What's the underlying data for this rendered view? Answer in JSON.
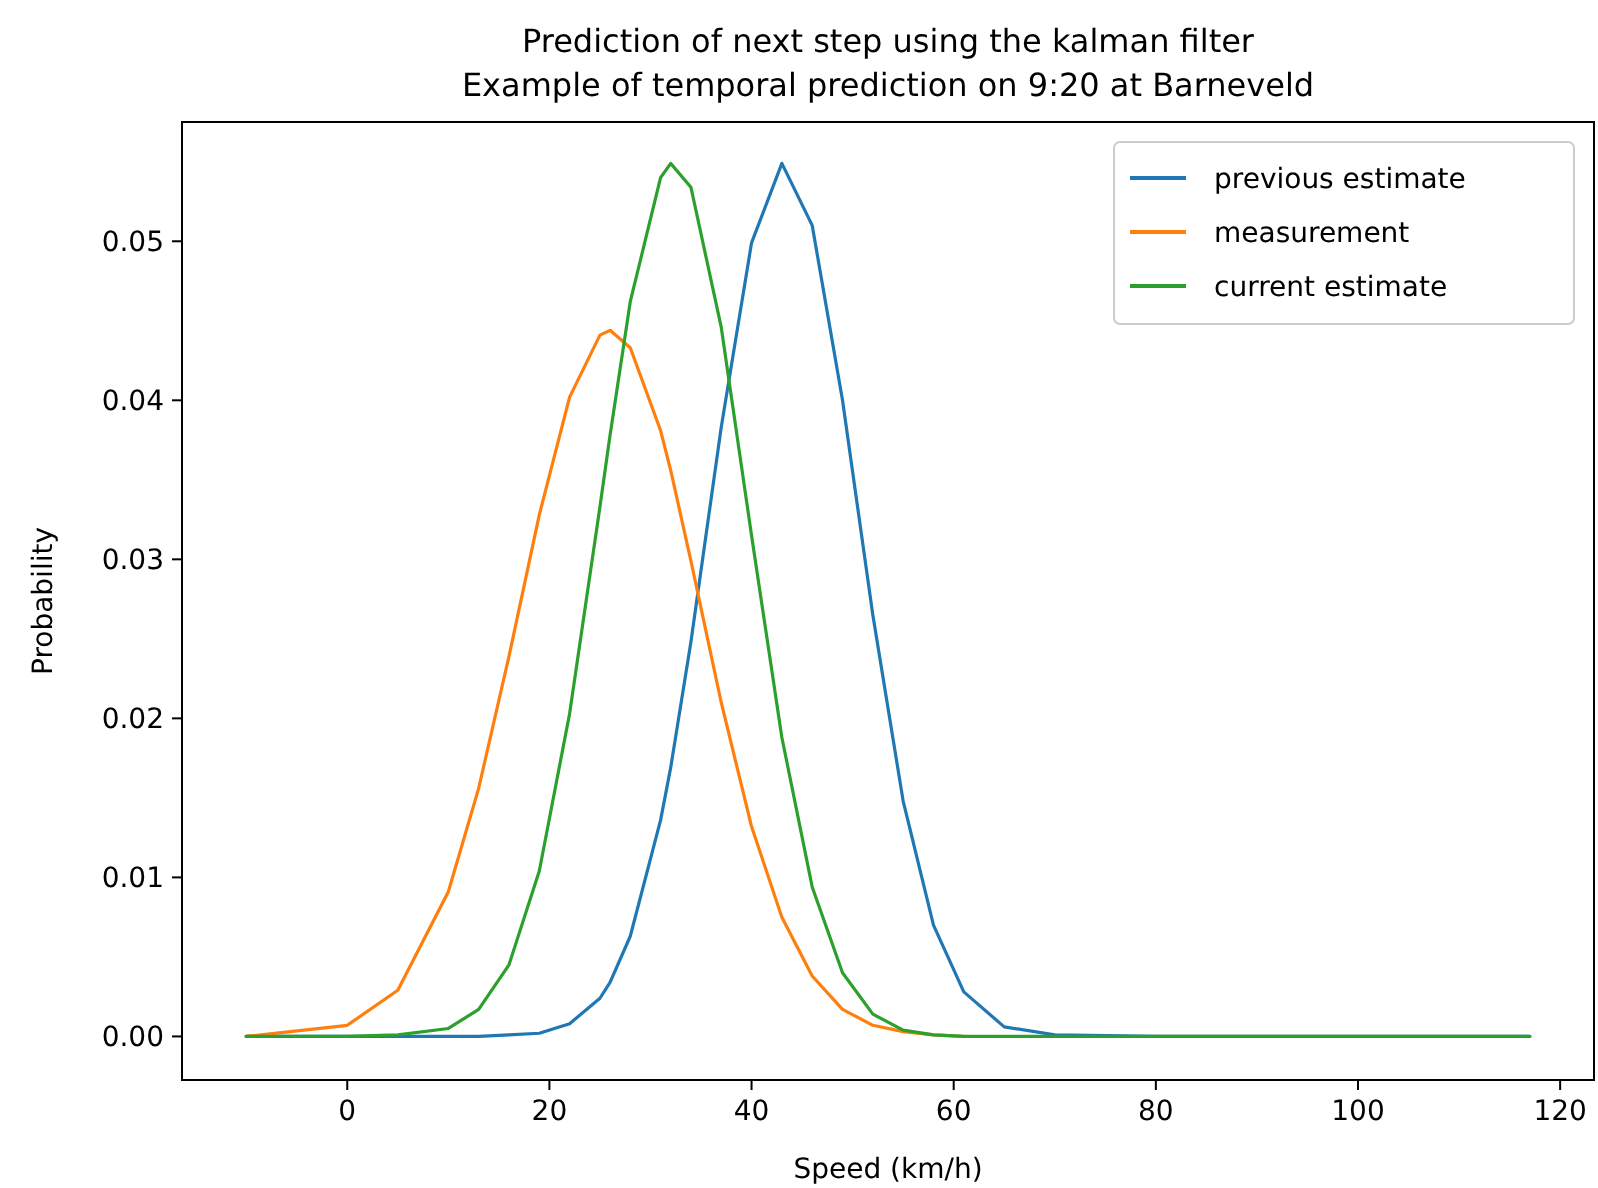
{
  "chart_data": {
    "type": "line",
    "title": "Prediction of next step using the kalman filter",
    "subtitle": "Example of temporal prediction on 9:20 at Barneveld",
    "xlabel": "Speed (km/h)",
    "ylabel": "Probability",
    "x": [
      -10,
      0,
      5,
      10,
      13,
      16,
      19,
      22,
      25,
      26,
      28,
      31,
      32,
      34,
      37,
      40,
      43,
      46,
      49,
      52,
      55,
      58,
      61,
      65,
      70,
      80,
      117
    ],
    "series": [
      {
        "name": "previous estimate",
        "color": "#1f77b4",
        "values": [
          0,
          0,
          0,
          0,
          0,
          0.0001,
          0.0002,
          0.0008,
          0.0024,
          0.0034,
          0.0063,
          0.0136,
          0.0169,
          0.0248,
          0.0383,
          0.0499,
          0.0549,
          0.051,
          0.04,
          0.0265,
          0.0148,
          0.007,
          0.0028,
          0.0006,
          0.0001,
          0,
          0
        ]
      },
      {
        "name": "measurement",
        "color": "#ff7f0e",
        "values": [
          0,
          0.0007,
          0.0029,
          0.0091,
          0.0156,
          0.0239,
          0.0328,
          0.0402,
          0.0441,
          0.0444,
          0.0433,
          0.0381,
          0.0356,
          0.0299,
          0.021,
          0.0132,
          0.0075,
          0.0038,
          0.0017,
          0.0007,
          0.0003,
          0.0001,
          0,
          null,
          null,
          null,
          null
        ]
      },
      {
        "name": "current estimate",
        "color": "#2ca02c",
        "values": [
          0,
          0,
          0.0001,
          0.0005,
          0.0017,
          0.0045,
          0.0104,
          0.0203,
          0.0333,
          0.0378,
          0.0462,
          0.054,
          0.0549,
          0.0534,
          0.0446,
          0.0315,
          0.0188,
          0.0094,
          0.004,
          0.0014,
          0.0004,
          0.0001,
          0,
          0,
          0,
          0,
          0
        ]
      }
    ],
    "xlim": [
      -16.35,
      123.35
    ],
    "ylim": [
      -0.00274,
      0.0575
    ],
    "xticks": [
      0,
      20,
      40,
      60,
      80,
      100,
      120
    ],
    "yticks": [
      {
        "value": 0,
        "label": "0.00"
      },
      {
        "value": 0.01,
        "label": "0.01"
      },
      {
        "value": 0.02,
        "label": "0.02"
      },
      {
        "value": 0.03,
        "label": "0.03"
      },
      {
        "value": 0.04,
        "label": "0.04"
      },
      {
        "value": 0.05,
        "label": "0.05"
      }
    ],
    "legend": "top right",
    "grid": false,
    "line_style": "solid",
    "marker": "none"
  }
}
